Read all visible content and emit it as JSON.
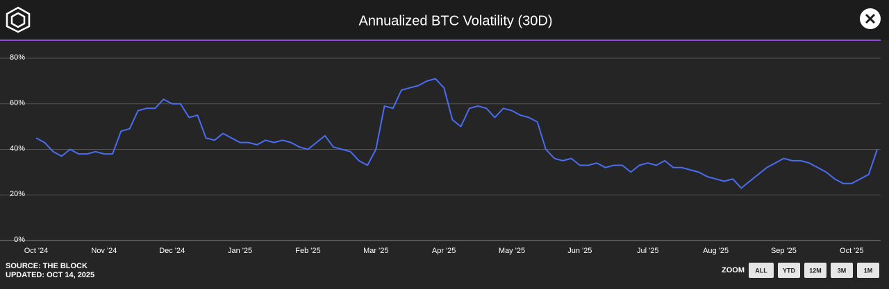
{
  "chart_data": {
    "type": "line",
    "title": "Annualized BTC Volatility (30D)",
    "source": "SOURCE: THE BLOCK",
    "updated": "UPDATED: OCT 14, 2025",
    "zoom_label": "ZOOM",
    "zoom_buttons": [
      "ALL",
      "YTD",
      "12M",
      "3M",
      "1M"
    ],
    "categories": [
      "Oct '24",
      null,
      null,
      null,
      null,
      null,
      null,
      null,
      "Nov '24",
      null,
      null,
      null,
      null,
      null,
      null,
      null,
      "Dec '24",
      null,
      null,
      null,
      null,
      null,
      null,
      null,
      "Jan '25",
      null,
      null,
      null,
      null,
      null,
      null,
      null,
      "Feb '25",
      null,
      null,
      null,
      null,
      null,
      null,
      null,
      "Mar '25",
      null,
      null,
      null,
      null,
      null,
      null,
      null,
      "Apr '25",
      null,
      null,
      null,
      null,
      null,
      null,
      null,
      "May '25",
      null,
      null,
      null,
      null,
      null,
      null,
      null,
      "Jun '25",
      null,
      null,
      null,
      null,
      null,
      null,
      null,
      "Jul '25",
      null,
      null,
      null,
      null,
      null,
      null,
      null,
      "Aug '25",
      null,
      null,
      null,
      null,
      null,
      null,
      null,
      "Sep '25",
      null,
      null,
      null,
      null,
      null,
      null,
      null,
      "Oct '25",
      null,
      null,
      null
    ],
    "series": [
      {
        "color": "#4a6cf0",
        "values": [
          45,
          43,
          39,
          37,
          40,
          38,
          38,
          39,
          38,
          38,
          48,
          49,
          57,
          58,
          58,
          62,
          60,
          60,
          54,
          55,
          45,
          44,
          47,
          45,
          43,
          43,
          42,
          44,
          43,
          44,
          43,
          41,
          40,
          43,
          46,
          41,
          40,
          39,
          35,
          33,
          40,
          59,
          58,
          66,
          67,
          68,
          70,
          71,
          67,
          53,
          50,
          58,
          59,
          58,
          54,
          58,
          57,
          55,
          54,
          52,
          40,
          36,
          35,
          36,
          33,
          33,
          34,
          32,
          33,
          33,
          30,
          33,
          34,
          33,
          35,
          32,
          32,
          31,
          30,
          28,
          27,
          26,
          27,
          23,
          26,
          29,
          32,
          34,
          36,
          35,
          35,
          34,
          32,
          30,
          27,
          25,
          25,
          27,
          29,
          40
        ]
      }
    ],
    "ylim": [
      0,
      80
    ],
    "yticks": [
      {
        "value": 0,
        "label": "0%"
      },
      {
        "value": 20,
        "label": "20%"
      },
      {
        "value": 40,
        "label": "40%"
      },
      {
        "value": 60,
        "label": "60%"
      },
      {
        "value": 80,
        "label": "80%"
      }
    ],
    "grid": true
  }
}
